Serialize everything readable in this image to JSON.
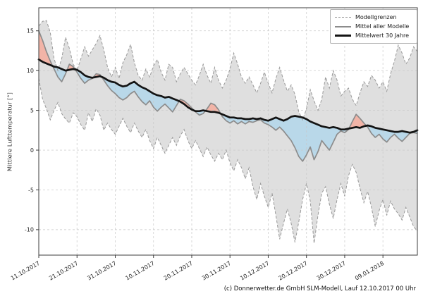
{
  "figure": {
    "caption": "(c) Donnerwetter.de GmbH SLM-Modell, Lauf 12.10.2017 00 Uhr"
  },
  "legend": {
    "items": [
      {
        "label": "Modellgrenzen",
        "style": "dashed-gray"
      },
      {
        "label": "Mittel aller Modelle",
        "style": "solid-gray"
      },
      {
        "label": "Mittelwert 30 Jahre",
        "style": "solid-black-thick"
      }
    ]
  },
  "chart_data": {
    "type": "line",
    "title": "",
    "xlabel": "",
    "ylabel": "Mittlere Lufttemperatur [°]",
    "x_unit_days_from": "11.10.2017",
    "xlim": [
      0,
      99
    ],
    "ylim": [
      -13.2,
      17.9
    ],
    "grid": true,
    "legend_position": "upper right",
    "x_ticks": {
      "days": [
        0,
        10,
        20,
        30,
        40,
        50,
        60,
        70,
        80,
        90
      ],
      "labels": [
        "11.10.2017",
        "21.10.2017",
        "31.10.2017",
        "10.11.2017",
        "20.11.2017",
        "30.11.2017",
        "10.12.2017",
        "20.12.2017",
        "30.12.2017",
        "09.01.2018"
      ]
    },
    "y_ticks": [
      15,
      10,
      5,
      0,
      -5,
      -10
    ],
    "band": {
      "name": "Modellgrenzen",
      "upper": [
        15.6,
        16.2,
        16.3,
        14.8,
        11.5,
        10.0,
        11.5,
        14.2,
        12.8,
        10.8,
        10.0,
        11.5,
        13.0,
        11.8,
        12.6,
        13.4,
        14.4,
        12.6,
        10.4,
        9.2,
        10.4,
        9.0,
        11.0,
        12.0,
        13.3,
        11.0,
        9.4,
        8.8,
        10.2,
        9.2,
        10.6,
        11.4,
        9.8,
        8.8,
        10.8,
        10.4,
        8.6,
        9.6,
        10.4,
        9.6,
        8.8,
        8.2,
        9.4,
        10.8,
        9.4,
        8.4,
        10.4,
        8.8,
        7.8,
        8.8,
        10.2,
        12.2,
        10.8,
        9.2,
        8.4,
        9.2,
        8.2,
        7.2,
        8.4,
        9.8,
        8.4,
        7.2,
        9.0,
        10.4,
        8.8,
        7.4,
        8.2,
        7.0,
        4.8,
        3.8,
        5.2,
        7.6,
        6.2,
        5.0,
        6.4,
        9.2,
        7.8,
        10.0,
        8.8,
        6.8,
        7.4,
        7.8,
        6.4,
        5.6,
        7.2,
        8.6,
        8.0,
        9.4,
        8.8,
        7.8,
        8.6,
        7.4,
        9.6,
        11.2,
        13.2,
        12.2,
        10.8,
        11.6,
        13.0,
        12.4
      ],
      "lower": [
        9.0,
        6.4,
        5.2,
        3.8,
        5.0,
        6.0,
        4.6,
        3.9,
        3.4,
        4.7,
        4.2,
        3.2,
        2.5,
        4.7,
        3.6,
        5.2,
        4.4,
        2.5,
        3.4,
        2.6,
        2.0,
        3.0,
        4.0,
        3.0,
        2.2,
        3.4,
        2.4,
        1.6,
        2.6,
        1.2,
        0.2,
        1.6,
        0.6,
        -0.4,
        0.6,
        1.6,
        0.6,
        1.8,
        2.6,
        1.2,
        0.2,
        1.2,
        0.2,
        -0.8,
        0.4,
        -0.6,
        -1.4,
        -0.4,
        -1.2,
        0.0,
        -1.6,
        -2.6,
        -1.2,
        -2.2,
        -3.6,
        -2.2,
        -4.6,
        -6.2,
        -4.2,
        -5.8,
        -7.2,
        -5.4,
        -8.2,
        -11.2,
        -9.2,
        -7.4,
        -9.2,
        -11.6,
        -9.0,
        -6.2,
        -4.2,
        -6.4,
        -11.7,
        -8.2,
        -5.4,
        -4.6,
        -6.8,
        -8.6,
        -6.2,
        -4.2,
        -5.8,
        -3.2,
        -1.8,
        -2.8,
        -4.8,
        -6.6,
        -5.2,
        -7.2,
        -9.6,
        -7.6,
        -6.2,
        -8.2,
        -6.4,
        -7.4,
        -8.0,
        -8.8,
        -7.2,
        -8.4,
        -9.6,
        -10.2
      ]
    },
    "series": [
      {
        "name": "Mittel aller Modelle",
        "color": "#8c8c8c",
        "values": [
          15.0,
          13.8,
          12.4,
          11.2,
          10.2,
          9.2,
          8.6,
          9.6,
          10.8,
          10.5,
          9.8,
          9.0,
          8.4,
          8.8,
          9.0,
          9.6,
          9.5,
          8.8,
          8.1,
          7.5,
          7.1,
          6.6,
          6.3,
          6.6,
          7.1,
          7.4,
          6.7,
          6.1,
          5.7,
          6.2,
          5.4,
          4.9,
          5.4,
          5.8,
          5.3,
          4.8,
          5.6,
          6.4,
          6.2,
          5.8,
          5.3,
          4.8,
          4.4,
          4.6,
          5.2,
          5.9,
          5.7,
          5.1,
          4.2,
          3.7,
          3.4,
          3.7,
          3.3,
          3.6,
          3.3,
          3.6,
          3.5,
          3.7,
          3.8,
          3.4,
          3.2,
          2.9,
          2.5,
          2.9,
          2.4,
          1.8,
          1.2,
          0.3,
          -0.8,
          -1.4,
          -0.6,
          0.4,
          -1.2,
          -0.2,
          1.2,
          0.6,
          0.0,
          1.0,
          2.0,
          2.4,
          2.2,
          2.6,
          3.6,
          4.5,
          4.0,
          3.4,
          2.9,
          2.1,
          1.6,
          2.0,
          1.4,
          1.0,
          1.6,
          2.0,
          1.5,
          1.1,
          1.6,
          2.1,
          2.2,
          2.1
        ]
      },
      {
        "name": "Mittelwert 30 Jahre",
        "color": "#141414",
        "values": [
          11.4,
          11.1,
          10.9,
          10.7,
          10.5,
          10.4,
          10.2,
          10.0,
          10.1,
          10.2,
          10.1,
          9.8,
          9.4,
          9.2,
          9.1,
          9.2,
          9.3,
          9.1,
          8.8,
          8.6,
          8.5,
          8.2,
          8.0,
          8.1,
          8.4,
          8.6,
          8.2,
          7.9,
          7.7,
          7.4,
          7.1,
          6.9,
          6.8,
          6.6,
          6.7,
          6.5,
          6.3,
          6.1,
          5.8,
          5.4,
          5.1,
          4.9,
          4.9,
          5.0,
          4.9,
          4.8,
          4.8,
          4.7,
          4.5,
          4.3,
          4.1,
          4.1,
          4.0,
          4.0,
          3.9,
          3.9,
          4.0,
          3.9,
          4.0,
          3.8,
          3.7,
          3.9,
          4.1,
          3.9,
          3.7,
          3.9,
          4.2,
          4.3,
          4.2,
          4.1,
          3.9,
          3.6,
          3.4,
          3.2,
          3.0,
          2.9,
          2.8,
          2.9,
          2.8,
          2.6,
          2.6,
          2.7,
          2.8,
          2.9,
          2.8,
          3.0,
          3.1,
          3.0,
          2.8,
          2.7,
          2.6,
          2.5,
          2.4,
          2.3,
          2.3,
          2.4,
          2.3,
          2.2,
          2.3,
          2.5
        ]
      }
    ],
    "fills": {
      "mean_above_climate": "#f2b4a7",
      "mean_below_climate": "#b9d8e9",
      "band": "#dfdfdf"
    }
  },
  "colors": {
    "grid": "#c9c9c9",
    "band_edge": "#999999",
    "spine": "#3c3c3c",
    "text": "#222222",
    "background": "#ffffff"
  }
}
